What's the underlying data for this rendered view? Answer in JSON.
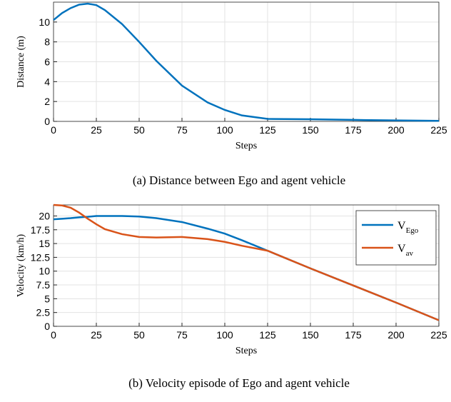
{
  "chart_data": [
    {
      "type": "line",
      "caption": "(a) Distance between Ego and agent vehicle",
      "xlabel": "Steps",
      "ylabel": "Distance (m)",
      "xlim": [
        0,
        225
      ],
      "xticks": [
        0,
        25,
        50,
        75,
        100,
        125,
        150,
        175,
        200,
        225
      ],
      "ylim": [
        0,
        12
      ],
      "yticks": [
        0,
        2,
        4,
        6,
        8,
        10
      ],
      "grid": true,
      "x": [
        0,
        5,
        10,
        15,
        20,
        25,
        30,
        40,
        50,
        60,
        75,
        90,
        100,
        110,
        125,
        150,
        175,
        200,
        225
      ],
      "series": [
        {
          "color": "#0072bd",
          "values": [
            10.2,
            10.9,
            11.4,
            11.75,
            11.85,
            11.7,
            11.2,
            9.8,
            8.0,
            6.1,
            3.6,
            1.9,
            1.15,
            0.6,
            0.25,
            0.22,
            0.15,
            0.1,
            0.05
          ]
        }
      ]
    },
    {
      "type": "line",
      "caption": "(b) Velocity episode of Ego and agent vehicle",
      "xlabel": "Steps",
      "ylabel": "Velocity (km/h)",
      "xlim": [
        0,
        225
      ],
      "xticks": [
        0,
        25,
        50,
        75,
        100,
        125,
        150,
        175,
        200,
        225
      ],
      "ylim": [
        0,
        22
      ],
      "yticks": [
        0,
        2.5,
        5,
        7.5,
        10,
        12.5,
        15,
        17.5,
        20
      ],
      "grid": true,
      "legend": "upper-right",
      "x": [
        0,
        5,
        10,
        15,
        20,
        25,
        30,
        40,
        50,
        60,
        75,
        90,
        100,
        110,
        125,
        150,
        175,
        200,
        225
      ],
      "series": [
        {
          "name": "V",
          "subscript": "Ego",
          "color": "#0072bd",
          "values": [
            19.4,
            19.5,
            19.6,
            19.75,
            19.85,
            20,
            20,
            20,
            19.9,
            19.6,
            18.9,
            17.7,
            16.8,
            15.6,
            13.7,
            10.5,
            7.4,
            4.3,
            1.1
          ]
        },
        {
          "name": "V",
          "subscript": "av",
          "color": "#d95319",
          "values": [
            22,
            21.9,
            21.5,
            20.6,
            19.5,
            18.5,
            17.6,
            16.7,
            16.2,
            16.1,
            16.2,
            15.8,
            15.3,
            14.6,
            13.7,
            10.5,
            7.4,
            4.3,
            1.1
          ]
        }
      ]
    }
  ]
}
